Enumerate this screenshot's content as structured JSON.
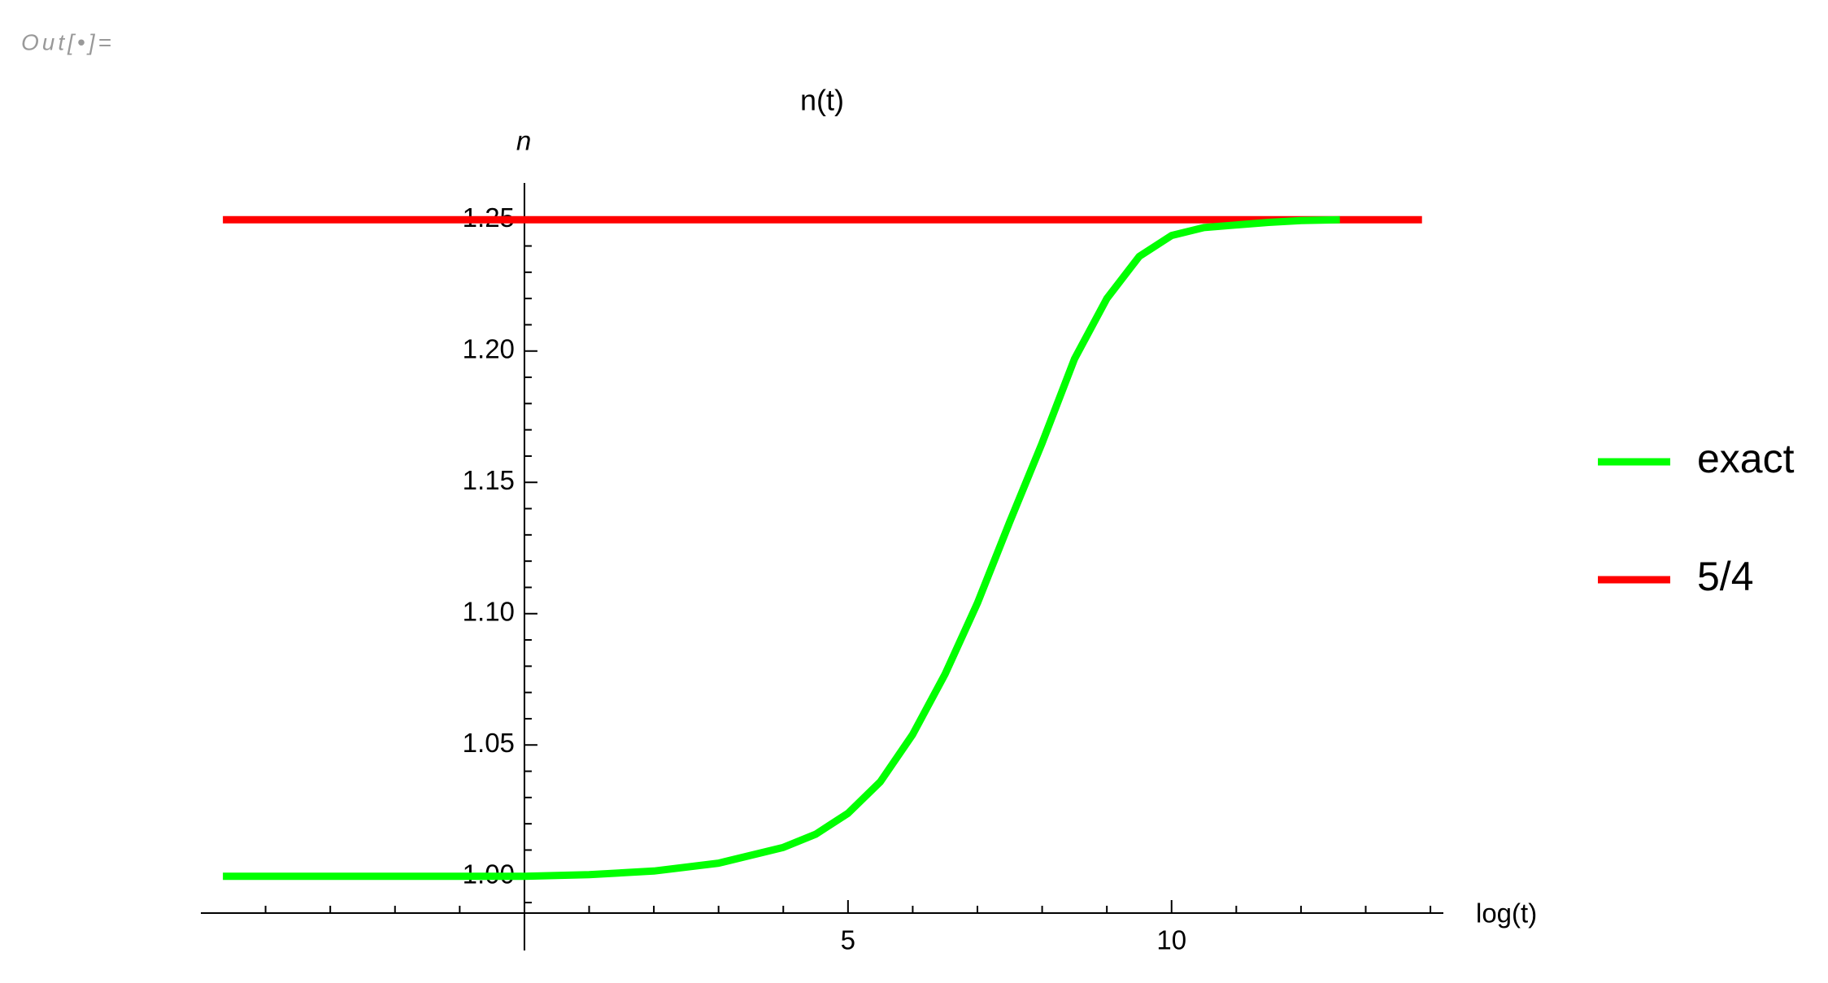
{
  "cell_label": "Out[•]=",
  "chart_data": {
    "type": "line",
    "title": "n(t)",
    "x_label": "log(t)",
    "y_label": "n",
    "xlim": [
      -5,
      14.2
    ],
    "ylim": [
      0.986,
      1.264
    ],
    "xticks": [
      5,
      10
    ],
    "xminorticks": [
      -4,
      -3,
      -2,
      -1,
      1,
      2,
      3,
      4,
      6,
      7,
      8,
      9,
      11,
      12,
      13,
      14
    ],
    "yticks": [
      {
        "value": 1.0,
        "label": "1.00"
      },
      1.05,
      {
        "value": 1.1,
        "label": "1.10"
      },
      1.15,
      {
        "value": 1.2,
        "label": "1.20"
      },
      1.25
    ],
    "yminorticks": [
      0.99,
      1.01,
      1.02,
      1.03,
      1.04,
      1.06,
      1.07,
      1.08,
      1.09,
      1.11,
      1.12,
      1.13,
      1.14,
      1.16,
      1.17,
      1.18,
      1.19,
      1.21,
      1.22,
      1.23,
      1.24
    ],
    "legend": "right",
    "series": [
      {
        "name": "exact",
        "color": "#00ff00",
        "x": [
          -4.66,
          -3,
          -2,
          -1,
          0,
          1,
          2,
          3,
          4,
          4.5,
          5,
          5.5,
          6,
          6.5,
          7,
          7.5,
          8,
          8.5,
          9,
          9.5,
          10,
          10.5,
          11,
          11.5,
          12,
          12.6
        ],
        "values": [
          1,
          1,
          1,
          1,
          1,
          1.0006,
          1.002,
          1.005,
          1.011,
          1.016,
          1.024,
          1.036,
          1.054,
          1.077,
          1.104,
          1.135,
          1.165,
          1.197,
          1.22,
          1.236,
          1.244,
          1.247,
          1.248,
          1.249,
          1.2497,
          1.25
        ]
      },
      {
        "name": "5/4",
        "color": "#ff0000",
        "x": [
          -4.66,
          13.87
        ],
        "values": [
          1.25,
          1.25
        ]
      }
    ]
  }
}
